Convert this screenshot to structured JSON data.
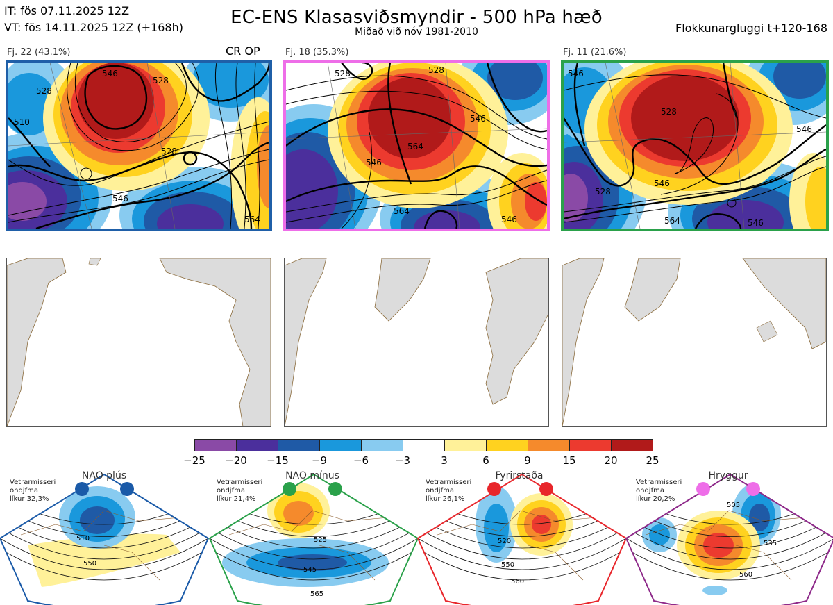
{
  "header": {
    "it_line": "IT: fös 07.11.2025 12Z",
    "vt_line": "VT: fös 14.11.2025 12Z  (+168h)",
    "title": "EC-ENS Klasasviðsmyndir - 500 hPa hæð",
    "subtitle": "Miðað við nóv 1981-2010",
    "window": "Flokkunargluggi t+120-168"
  },
  "clusters": [
    {
      "label": "Fj. 22 (43.1%)",
      "border_color": "#1f5fa8",
      "contour_labels": [
        "546",
        "528",
        "528",
        "528",
        "546",
        "564",
        "510"
      ]
    },
    {
      "label": "Fj. 18 (35.3%)",
      "border_color": "#ee6ee8",
      "contour_labels": [
        "528",
        "528",
        "546",
        "546",
        "564",
        "564",
        "546"
      ]
    },
    {
      "label": "Fj. 11 (21.6%)",
      "border_color": "#2aa14a",
      "contour_labels": [
        "546",
        "528",
        "528",
        "546",
        "564",
        "546",
        "546"
      ]
    }
  ],
  "crop_label": "CR OP",
  "chart_data": {
    "type": "heatmap",
    "title": "EC-ENS Klasasviðsmyndir - 500 hPa hæð",
    "variable": "500 hPa geopotential height anomaly (dam)",
    "colorbar": {
      "ticks": [
        "−25",
        "−20",
        "−15",
        "−9",
        "−6",
        "−3",
        "3",
        "6",
        "9",
        "15",
        "20",
        "25"
      ],
      "boundaries": [
        -25,
        -20,
        -15,
        -9,
        -6,
        -3,
        3,
        6,
        9,
        15,
        20,
        25
      ],
      "colors": [
        "#8a4aa6",
        "#4b2f9c",
        "#1f5aa6",
        "#1a98dc",
        "#88cbf0",
        "#ffffff",
        "#fff199",
        "#ffd21f",
        "#f58a2c",
        "#ec3a2f",
        "#b11a1a"
      ]
    },
    "cluster_frequencies": [
      {
        "name": "Fj. 22",
        "percent": 43.1
      },
      {
        "name": "Fj. 18",
        "percent": 35.3
      },
      {
        "name": "Fj. 11",
        "percent": 21.6
      }
    ],
    "regimes": [
      {
        "name": "NAO plús",
        "color": "#1a5aa8",
        "likelihood_pct": 32.3,
        "contour_labels": [
          "510",
          "550"
        ]
      },
      {
        "name": "NAO mínus",
        "color": "#2aa14a",
        "likelihood_pct": 21.4,
        "contour_labels": [
          "525",
          "545",
          "565"
        ]
      },
      {
        "name": "Fyrirstaða",
        "color": "#e8262b",
        "likelihood_pct": 26.1,
        "contour_labels": [
          "520",
          "550",
          "560"
        ]
      },
      {
        "name": "Hryggur",
        "color": "#ee6ee8",
        "likelihood_pct": 20.2,
        "contour_labels": [
          "505",
          "535",
          "560"
        ]
      }
    ]
  },
  "regime_notes": [
    {
      "line1": "Vetrarmisseri",
      "line2": "ondjfma",
      "line3": "líkur 32,3%"
    },
    {
      "line1": "Vetrarmisseri",
      "line2": "ondjfma",
      "line3": "líkur 21,4%"
    },
    {
      "line1": "Vetrarmisseri",
      "line2": "ondjfma",
      "line3": "líkur 26,1%"
    },
    {
      "line1": "Vetrarmisseri",
      "line2": "ondjfma",
      "line3": "líkur 20,2%"
    }
  ]
}
